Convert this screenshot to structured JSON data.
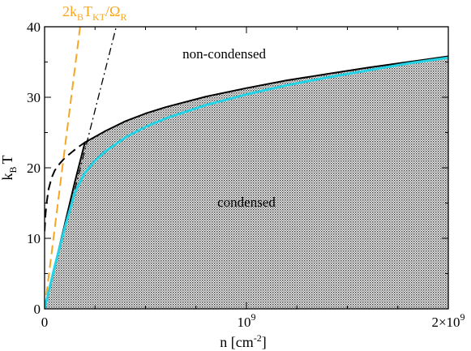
{
  "chart_data": {
    "type": "line",
    "xlabel": {
      "main": "n [cm",
      "sup": "-2",
      "tail": "]"
    },
    "ylabel": {
      "main": "k",
      "sub": "B",
      "tail": "T"
    },
    "xlim": [
      0,
      2000000000
    ],
    "ylim": [
      0,
      40
    ],
    "grid": false,
    "x_ticks": [
      {
        "value": 0,
        "label": {
          "main": "0",
          "sup": ""
        }
      },
      {
        "value": 1000000000,
        "label": {
          "main": "10",
          "sup": "9"
        }
      },
      {
        "value": 2000000000,
        "label": {
          "main": "2×10",
          "sup": "9"
        }
      }
    ],
    "y_ticks": [
      0,
      10,
      20,
      30,
      40
    ],
    "regions": [
      {
        "label": "condensed",
        "fill": "hatched",
        "anchor": [
          1000000000,
          14.5
        ]
      },
      {
        "label": "non-condensed",
        "fill": "none",
        "anchor": [
          1000000000,
          35.5
        ]
      }
    ],
    "annotation": {
      "color": "#f5a623",
      "parts": [
        {
          "t": "2k",
          "s": ""
        },
        {
          "t": "B",
          "s": "sub"
        },
        {
          "t": "T",
          "s": ""
        },
        {
          "t": "KT",
          "s": "sub"
        },
        {
          "t": "/Ω",
          "s": ""
        },
        {
          "t": "R",
          "s": "sub"
        }
      ]
    },
    "series": [
      {
        "style": "solid",
        "color": "#000000",
        "width": 2,
        "x": [
          0,
          50000000,
          100000000,
          150000000,
          200000000,
          250000000,
          300000000,
          400000000,
          500000000,
          600000000,
          800000000,
          1000000000,
          1200000000,
          1400000000,
          1600000000,
          1800000000,
          2000000000
        ],
        "y": [
          0,
          6,
          12,
          18,
          23.6,
          24.4,
          25.2,
          26.6,
          27.7,
          28.6,
          30.1,
          31.3,
          32.4,
          33.3,
          34.2,
          35.0,
          35.8
        ]
      },
      {
        "style": "solid",
        "color": "#22d3e6",
        "width": 3,
        "x": [
          0,
          50000000,
          100000000,
          150000000,
          200000000,
          250000000,
          300000000,
          400000000,
          500000000,
          600000000,
          800000000,
          1000000000,
          1200000000,
          1400000000,
          1600000000,
          1800000000,
          2000000000
        ],
        "y": [
          0,
          6,
          11.5,
          16.5,
          19.3,
          21.0,
          22.3,
          24.3,
          25.8,
          27.0,
          28.9,
          30.4,
          31.7,
          32.8,
          33.8,
          34.8,
          35.6
        ]
      },
      {
        "style": "dashed",
        "color": "#000000",
        "width": 2,
        "x": [
          0,
          5000000,
          10000000,
          20000000,
          35000000,
          50000000,
          75000000,
          100000000,
          130000000,
          160000000,
          200000000
        ],
        "y": [
          11,
          13.5,
          15.0,
          17.0,
          18.6,
          19.6,
          20.6,
          21.4,
          22.1,
          22.8,
          23.6
        ]
      },
      {
        "style": "dashdot",
        "color": "#000000",
        "width": 1.3,
        "x": [
          0,
          355000000
        ],
        "y": [
          0,
          40
        ]
      },
      {
        "style": "dashed",
        "color": "#f5a623",
        "width": 2,
        "x": [
          0,
          176000000
        ],
        "y": [
          0,
          40
        ]
      }
    ]
  }
}
